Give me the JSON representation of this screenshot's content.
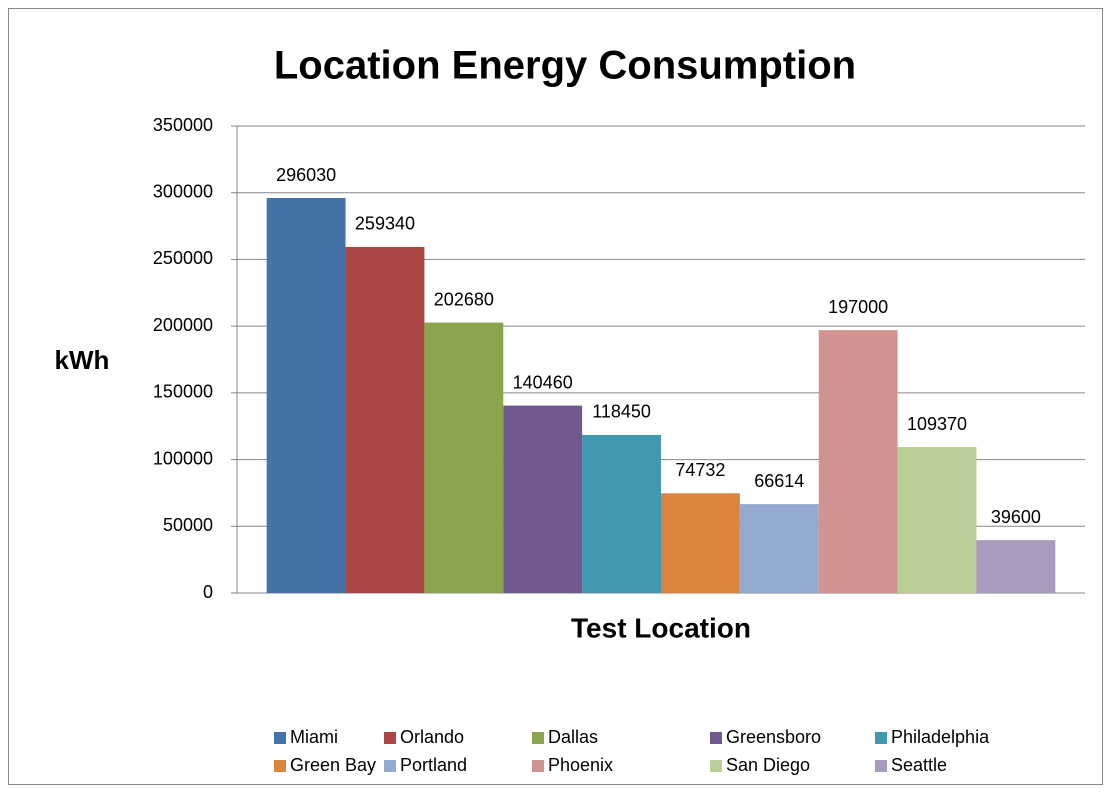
{
  "chart_data": {
    "type": "bar",
    "title": "Location Energy Consumption",
    "x_label": "Test Location",
    "y_label": "kWh",
    "categories": [
      null
    ],
    "series": [
      {
        "name": "Miami",
        "color": "#4572a7",
        "values": [
          296030
        ]
      },
      {
        "name": "Orlando",
        "color": "#aa4643",
        "values": [
          259340
        ]
      },
      {
        "name": "Dallas",
        "color": "#89a54e",
        "values": [
          202680
        ]
      },
      {
        "name": "Greensboro",
        "color": "#71588f",
        "values": [
          140460
        ]
      },
      {
        "name": "Philadelphia",
        "color": "#4198af",
        "values": [
          118450
        ]
      },
      {
        "name": "Green Bay",
        "color": "#db843d",
        "values": [
          74732
        ]
      },
      {
        "name": "Portland",
        "color": "#93a9cf",
        "values": [
          66614
        ]
      },
      {
        "name": "Phoenix",
        "color": "#d19392",
        "values": [
          197000
        ]
      },
      {
        "name": "San Diego",
        "color": "#b9cd96",
        "values": [
          109370
        ]
      },
      {
        "name": "Seattle",
        "color": "#a99bbd",
        "values": [
          39600
        ]
      }
    ],
    "ylim": [
      0,
      350000
    ],
    "yticks": [
      0,
      50000,
      100000,
      150000,
      200000,
      250000,
      300000,
      350000
    ],
    "grid": true,
    "legend": "bottom"
  }
}
